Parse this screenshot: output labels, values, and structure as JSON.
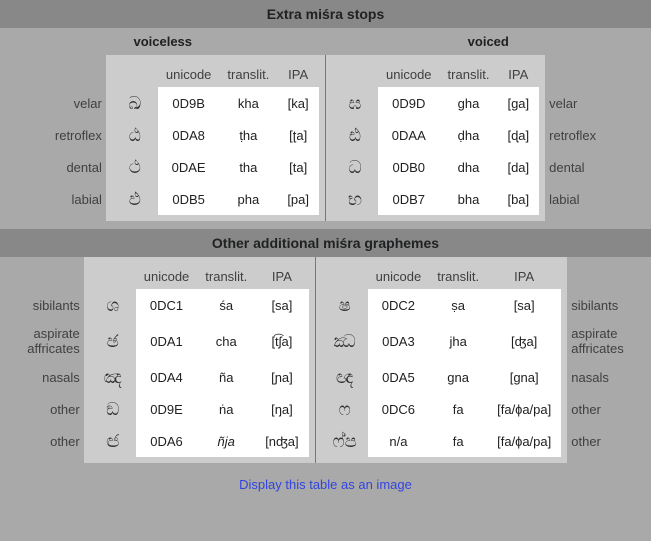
{
  "section1": {
    "title": "Extra miśra stops",
    "sub_left": "voiceless",
    "sub_right": "voiced",
    "headers": [
      "unicode",
      "translit.",
      "IPA"
    ],
    "rows": [
      {
        "label": "velar",
        "left": {
          "glyph": "ඛ",
          "u": "0D9B",
          "t": "kha",
          "ipa": "[ka]"
        },
        "right": {
          "glyph": "ඝ",
          "u": "0D9D",
          "t": "gha",
          "ipa": "[ga]"
        }
      },
      {
        "label": "retroflex",
        "left": {
          "glyph": "ඨ",
          "u": "0DA8",
          "t": "ṭha",
          "ipa": "[ʈa]"
        },
        "right": {
          "glyph": "ඪ",
          "u": "0DAA",
          "t": "ḍha",
          "ipa": "[ɖa]"
        }
      },
      {
        "label": "dental",
        "left": {
          "glyph": "ථ",
          "u": "0DAE",
          "t": "tha",
          "ipa": "[ta]"
        },
        "right": {
          "glyph": "ධ",
          "u": "0DB0",
          "t": "dha",
          "ipa": "[da]"
        }
      },
      {
        "label": "labial",
        "left": {
          "glyph": "ඵ",
          "u": "0DB5",
          "t": "pha",
          "ipa": "[pa]"
        },
        "right": {
          "glyph": "භ",
          "u": "0DB7",
          "t": "bha",
          "ipa": "[ba]"
        }
      }
    ]
  },
  "section2": {
    "title": "Other additional miśra graphemes",
    "headers": [
      "unicode",
      "translit.",
      "IPA"
    ],
    "rows": [
      {
        "label": "sibilants",
        "left": {
          "glyph": "ශ",
          "u": "0DC1",
          "t": "śa",
          "ipa": "[sa]"
        },
        "right": {
          "glyph": "ෂ",
          "u": "0DC2",
          "t": "ṣa",
          "ipa": "[sa]"
        }
      },
      {
        "label": "aspirate\naffricates",
        "left": {
          "glyph": "ඡ",
          "u": "0DA1",
          "t": "cha",
          "ipa": "[t͡ʃa]"
        },
        "right": {
          "glyph": "ඣ",
          "u": "0DA3",
          "t": "jha",
          "ipa": "[ʤa]"
        }
      },
      {
        "label": "nasals",
        "left": {
          "glyph": "ඤ",
          "u": "0DA4",
          "t": "ña",
          "ipa": "[ɲa]"
        },
        "right": {
          "glyph": "ඥ",
          "u": "0DA5",
          "t": "gna",
          "ipa": "[gna]"
        }
      },
      {
        "label": "other",
        "left": {
          "glyph": "ඞ",
          "u": "0D9E",
          "t": "ṅa",
          "ipa": "[ŋa]"
        },
        "right": {
          "glyph": "ෆ",
          "u": "0DC6",
          "t": "fa",
          "ipa": "[fa/ɸa/pa]"
        }
      },
      {
        "label": "other",
        "left": {
          "glyph": "ඦ",
          "u": "0DA6",
          "t": "ñja",
          "ipa": "[nʤa]",
          "t_ital": true
        },
        "right": {
          "glyph": "ෆ්ප",
          "u": "n/a",
          "t": "fa",
          "ipa": "[fa/ɸa/pa]"
        }
      }
    ]
  },
  "footer_link": "Display this table as an image",
  "colors": {
    "header_bg": "#888888",
    "body_bg": "#a9a9a9",
    "panel_bg": "#cccccc",
    "cell_bg": "#ffffff",
    "link": "#3344dd"
  }
}
